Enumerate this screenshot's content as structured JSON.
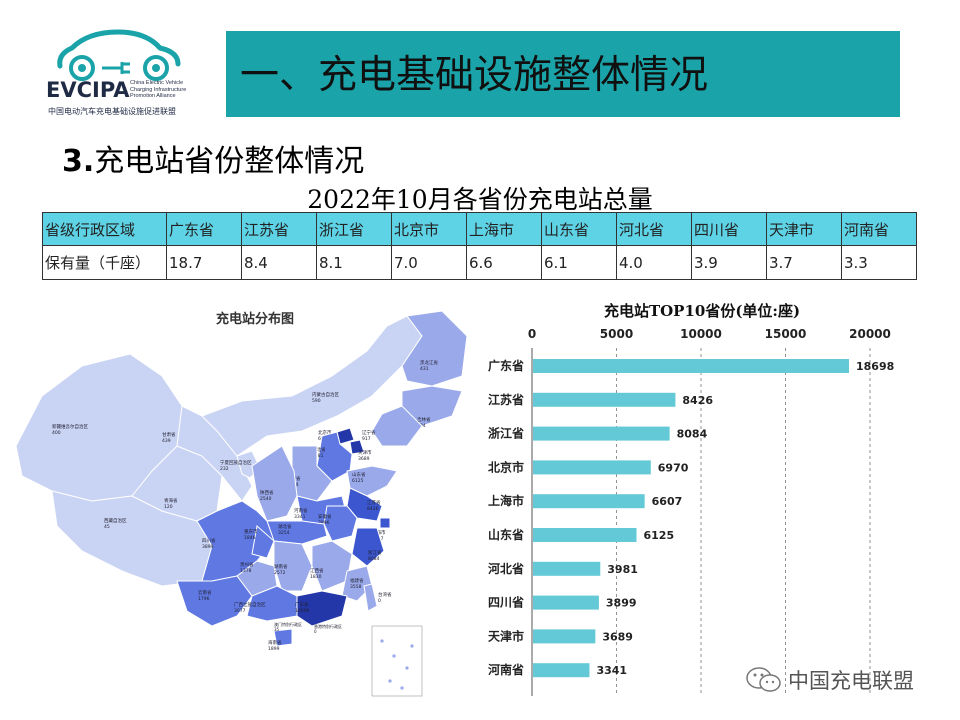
{
  "logo": {
    "name": "EVCIPA",
    "subtitle_en": "China Electric Vehicle Charging Infrastructure Promotion Alliance",
    "subtitle_cn": "中国电动汽车充电基础设施促进联盟"
  },
  "header": {
    "title": "一、充电基础设施整体情况"
  },
  "section": {
    "num": "3.",
    "title": "充电站省份整体情况"
  },
  "table": {
    "title": "2022年10月各省份充电站总量",
    "header_label": "省级行政区域",
    "row_label": "保有量（千座）",
    "provinces": [
      "广东省",
      "江苏省",
      "浙江省",
      "北京市",
      "上海市",
      "山东省",
      "河北省",
      "四川省",
      "天津市",
      "河南省"
    ],
    "values": [
      "18.7",
      "8.4",
      "8.1",
      "7.0",
      "6.6",
      "6.1",
      "4.0",
      "3.9",
      "3.7",
      "3.3"
    ]
  },
  "map": {
    "title": "充电站分布图",
    "colors": {
      "light": "#c9d3f3",
      "mid": "#9aa9ea",
      "strong": "#5f78e2",
      "dark": "#3b56cf",
      "darkest": "#2437a8"
    },
    "labels": [
      {
        "name": "新疆维吾尔自治区",
        "value": "400"
      },
      {
        "name": "西藏自治区",
        "value": "45"
      },
      {
        "name": "青海省",
        "value": "120"
      },
      {
        "name": "甘肃省",
        "value": "439"
      },
      {
        "name": "内蒙古自治区",
        "value": "590"
      },
      {
        "name": "黑龙江省",
        "value": "431"
      },
      {
        "name": "吉林省",
        "value": "304"
      },
      {
        "name": "辽宁省",
        "value": "917"
      },
      {
        "name": "北京市",
        "value": "6970"
      },
      {
        "name": "天津市",
        "value": "3689"
      },
      {
        "name": "河北省",
        "value": "3981"
      },
      {
        "name": "山西省",
        "value": "1624"
      },
      {
        "name": "山东省",
        "value": "6125"
      },
      {
        "name": "宁夏回族自治区",
        "value": "232"
      },
      {
        "name": "陕西省",
        "value": "2540"
      },
      {
        "name": "河南省",
        "value": "3341"
      },
      {
        "name": "江苏省",
        "value": "8426"
      },
      {
        "name": "安徽省",
        "value": "2896"
      },
      {
        "name": "上海市",
        "value": "6607"
      },
      {
        "name": "湖北省",
        "value": "3254"
      },
      {
        "name": "四川省",
        "value": "3899"
      },
      {
        "name": "重庆市",
        "value": "1846"
      },
      {
        "name": "浙江省",
        "value": "8084"
      },
      {
        "name": "贵州省",
        "value": "1378"
      },
      {
        "name": "湖南省",
        "value": "2572"
      },
      {
        "name": "江西省",
        "value": "1830"
      },
      {
        "name": "福建省",
        "value": "3558"
      },
      {
        "name": "云南省",
        "value": "1796"
      },
      {
        "name": "广西壮族自治区",
        "value": "3077"
      },
      {
        "name": "广东省",
        "value": "18698"
      },
      {
        "name": "海南省",
        "value": "1899"
      },
      {
        "name": "澳门特别行政区",
        "value": "35"
      },
      {
        "name": "香港特别行政区",
        "value": "0"
      },
      {
        "name": "台湾省",
        "value": "0"
      }
    ]
  },
  "chart_data": {
    "type": "bar",
    "orientation": "horizontal",
    "title": "充电站TOP10省份(单位:座)",
    "categories": [
      "广东省",
      "江苏省",
      "浙江省",
      "北京市",
      "上海市",
      "山东省",
      "河北省",
      "四川省",
      "天津市",
      "河南省"
    ],
    "values": [
      18698,
      8426,
      8084,
      6970,
      6607,
      6125,
      3981,
      3899,
      3689,
      3341
    ],
    "xlim": [
      0,
      20000
    ],
    "ticks": [
      "0",
      "5000",
      "10000",
      "15000",
      "20000"
    ],
    "tick_values": [
      0,
      5000,
      10000,
      15000,
      20000
    ],
    "grid": true,
    "bar_color": "#63c9d6",
    "axis_position": "top"
  },
  "watermark": {
    "text": "中国充电联盟"
  }
}
